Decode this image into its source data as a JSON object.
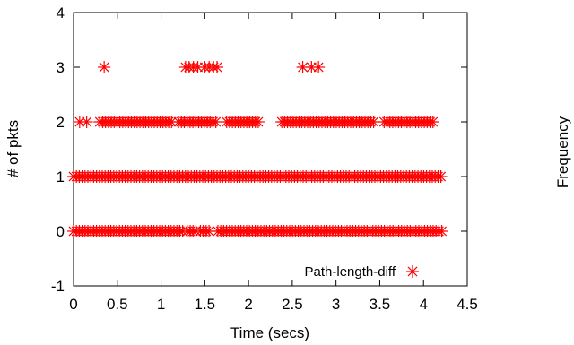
{
  "chart_data": {
    "type": "scatter",
    "xlabel": "Time (secs)",
    "ylabel": "# of pkts",
    "right_label": "Frequency",
    "xlim": [
      0,
      4.5
    ],
    "ylim": [
      -1,
      4
    ],
    "x_ticks": [
      "0",
      "0.5",
      "1",
      "1.5",
      "2",
      "2.5",
      "3",
      "3.5",
      "4",
      "4.5"
    ],
    "y_ticks": [
      "-1",
      "0",
      "1",
      "2",
      "3",
      "4"
    ],
    "grid": false,
    "legend_position": "bottom-right",
    "marker_color": "#ff0000",
    "series": [
      {
        "name": "Path-length-diff",
        "marker": "asterisk",
        "bands": [
          {
            "y": 0,
            "ranges": [
              [
                0.0,
                1.25
              ],
              [
                1.3,
                1.42
              ],
              [
                1.45,
                1.55
              ],
              [
                1.65,
                4.22
              ]
            ]
          },
          {
            "y": 1,
            "ranges": [
              [
                0.0,
                4.22
              ]
            ]
          },
          {
            "y": 2,
            "ranges": [
              [
                0.3,
                1.15
              ],
              [
                1.2,
                1.65
              ],
              [
                1.75,
                2.12
              ],
              [
                2.38,
                3.45
              ],
              [
                3.55,
                4.12
              ]
            ]
          }
        ],
        "points": [
          {
            "x": 0.07,
            "y": 2
          },
          {
            "x": 0.15,
            "y": 2
          },
          {
            "x": 0.35,
            "y": 3
          },
          {
            "x": 1.28,
            "y": 3
          },
          {
            "x": 1.32,
            "y": 3
          },
          {
            "x": 1.37,
            "y": 3
          },
          {
            "x": 1.42,
            "y": 3
          },
          {
            "x": 1.5,
            "y": 3
          },
          {
            "x": 1.55,
            "y": 3
          },
          {
            "x": 1.6,
            "y": 3
          },
          {
            "x": 1.64,
            "y": 3
          },
          {
            "x": 2.62,
            "y": 3
          },
          {
            "x": 2.72,
            "y": 3
          },
          {
            "x": 2.8,
            "y": 3
          }
        ]
      }
    ]
  }
}
